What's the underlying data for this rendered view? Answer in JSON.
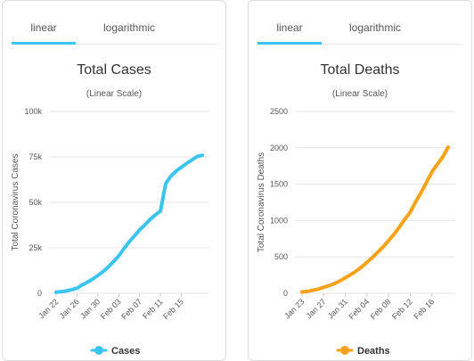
{
  "panels": [
    {
      "tabs": [
        "linear",
        "logarithmic"
      ],
      "active_tab": 0,
      "legend_label": "Cases",
      "color": "#3bc4ef"
    },
    {
      "tabs": [
        "linear",
        "logarithmic"
      ],
      "active_tab": 0,
      "legend_label": "Deaths",
      "color": "#f7a21b"
    }
  ],
  "chart_data": [
    {
      "type": "line",
      "title": "Total Cases",
      "subtitle": "(Linear Scale)",
      "ylabel": "Total Coronavirus Cases",
      "xlabel": "",
      "ylim": [
        0,
        100000
      ],
      "yticks": [
        0,
        25000,
        50000,
        75000,
        100000
      ],
      "ytick_labels": [
        "0",
        "25k",
        "50k",
        "75k",
        "100k"
      ],
      "xtick_labels": [
        "Jan 22",
        "Jan 26",
        "Jan 30",
        "Feb 03",
        "Feb 07",
        "Feb 11",
        "Feb 15"
      ],
      "x": [
        "Jan 22",
        "Jan 23",
        "Jan 24",
        "Jan 25",
        "Jan 26",
        "Jan 27",
        "Jan 28",
        "Jan 29",
        "Jan 30",
        "Jan 31",
        "Feb 01",
        "Feb 02",
        "Feb 03",
        "Feb 04",
        "Feb 05",
        "Feb 06",
        "Feb 07",
        "Feb 08",
        "Feb 09",
        "Feb 10",
        "Feb 11",
        "Feb 12",
        "Feb 13",
        "Feb 14",
        "Feb 15",
        "Feb 16",
        "Feb 17",
        "Feb 18",
        "Feb 19"
      ],
      "series": [
        {
          "name": "Cases",
          "values": [
            580,
            850,
            1300,
            2000,
            2800,
            4600,
            6100,
            7800,
            9800,
            11900,
            14500,
            17400,
            20600,
            24500,
            28300,
            31500,
            34900,
            37600,
            40600,
            43100,
            45200,
            60300,
            64500,
            67200,
            69300,
            71400,
            73300,
            75200,
            75900
          ]
        }
      ],
      "grid": true,
      "legend": "bottom"
    },
    {
      "type": "line",
      "title": "Total Deaths",
      "subtitle": "(Linear Scale)",
      "ylabel": "Total Coronavirus Deaths",
      "xlabel": "",
      "ylim": [
        0,
        2500
      ],
      "yticks": [
        0,
        500,
        1000,
        1500,
        2000,
        2500
      ],
      "ytick_labels": [
        "0",
        "500",
        "1000",
        "1500",
        "2000",
        "2500"
      ],
      "xtick_labels": [
        "Jan 23",
        "Jan 27",
        "Jan 31",
        "Feb 04",
        "Feb 08",
        "Feb 12",
        "Feb 16"
      ],
      "x": [
        "Jan 23",
        "Jan 24",
        "Jan 25",
        "Jan 26",
        "Jan 27",
        "Jan 28",
        "Jan 29",
        "Jan 30",
        "Jan 31",
        "Feb 01",
        "Feb 02",
        "Feb 03",
        "Feb 04",
        "Feb 05",
        "Feb 06",
        "Feb 07",
        "Feb 08",
        "Feb 09",
        "Feb 10",
        "Feb 11",
        "Feb 12",
        "Feb 13",
        "Feb 14",
        "Feb 15",
        "Feb 16",
        "Feb 17",
        "Feb 18",
        "Feb 19"
      ],
      "series": [
        {
          "name": "Deaths",
          "values": [
            18,
            26,
            42,
            56,
            82,
            106,
            132,
            170,
            213,
            259,
            304,
            362,
            426,
            492,
            565,
            638,
            724,
            813,
            910,
            1018,
            1115,
            1261,
            1383,
            1526,
            1669,
            1775,
            1873,
            2009
          ]
        }
      ],
      "grid": true,
      "legend": "bottom"
    }
  ]
}
